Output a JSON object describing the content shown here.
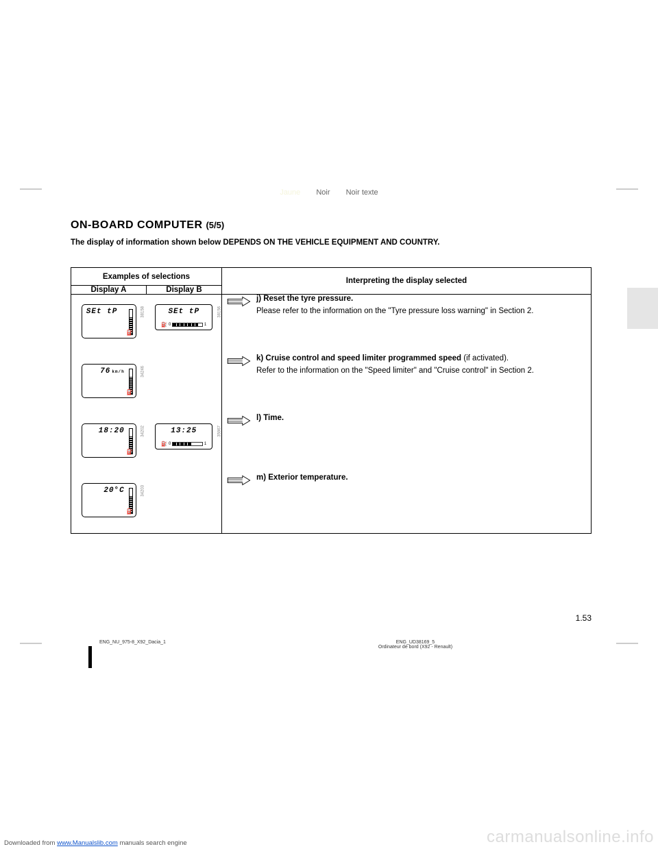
{
  "color_header": {
    "jaune": "Jaune",
    "noir": "Noir",
    "noir_texte": "Noir texte"
  },
  "title_main": "ON-BOARD COMPUTER ",
  "title_suffix": "(5/5)",
  "subtitle": "The display of information shown below DEPENDS ON THE VEHICLE EQUIPMENT AND COUNTRY.",
  "table": {
    "examples_header": "Examples of selections",
    "display_a": "Display A",
    "display_b": "Display B",
    "interpret_header": "Interpreting the display selected"
  },
  "rows": [
    {
      "display_a_text": "SEt  tP",
      "display_a_code": "38158",
      "display_b_text": "SEt  tP",
      "display_b_code": "38156",
      "has_b": true,
      "label": "j)  Reset the tyre pressure.",
      "desc": "Please refer to the information on the \"Tyre pressure loss warning\" in Section 2."
    },
    {
      "display_a_text": "76",
      "display_a_unit": "km/h",
      "display_a_code": "34246",
      "has_b": false,
      "label": "k) Cruise control and speed limiter programmed speed",
      "label_suffix": "  (if activated).",
      "desc": "Refer to the information on the \"Speed limiter\" and \"Cruise control\" in Section 2."
    },
    {
      "display_a_text": "18:20",
      "display_a_code": "34202",
      "display_b_text": "13:25",
      "display_b_code": "35967",
      "has_b": true,
      "label": "l)  Time."
    },
    {
      "display_a_text": "20°C",
      "display_a_code": "34203",
      "has_b": false,
      "label": "m) Exterior temperature."
    }
  ],
  "page_number": "1.53",
  "footer": {
    "left": "ENG_NU_975-8_X92_Dacia_1",
    "right_line1": "ENG_UD38169_5",
    "right_line2": "Ordinateur de bord (X92 - Renault)"
  },
  "bottom_left_prefix": "Downloaded from ",
  "bottom_left_link": "www.Manualslib.com",
  "bottom_left_suffix": " manuals search engine",
  "watermark": "carmanualsonline.info"
}
